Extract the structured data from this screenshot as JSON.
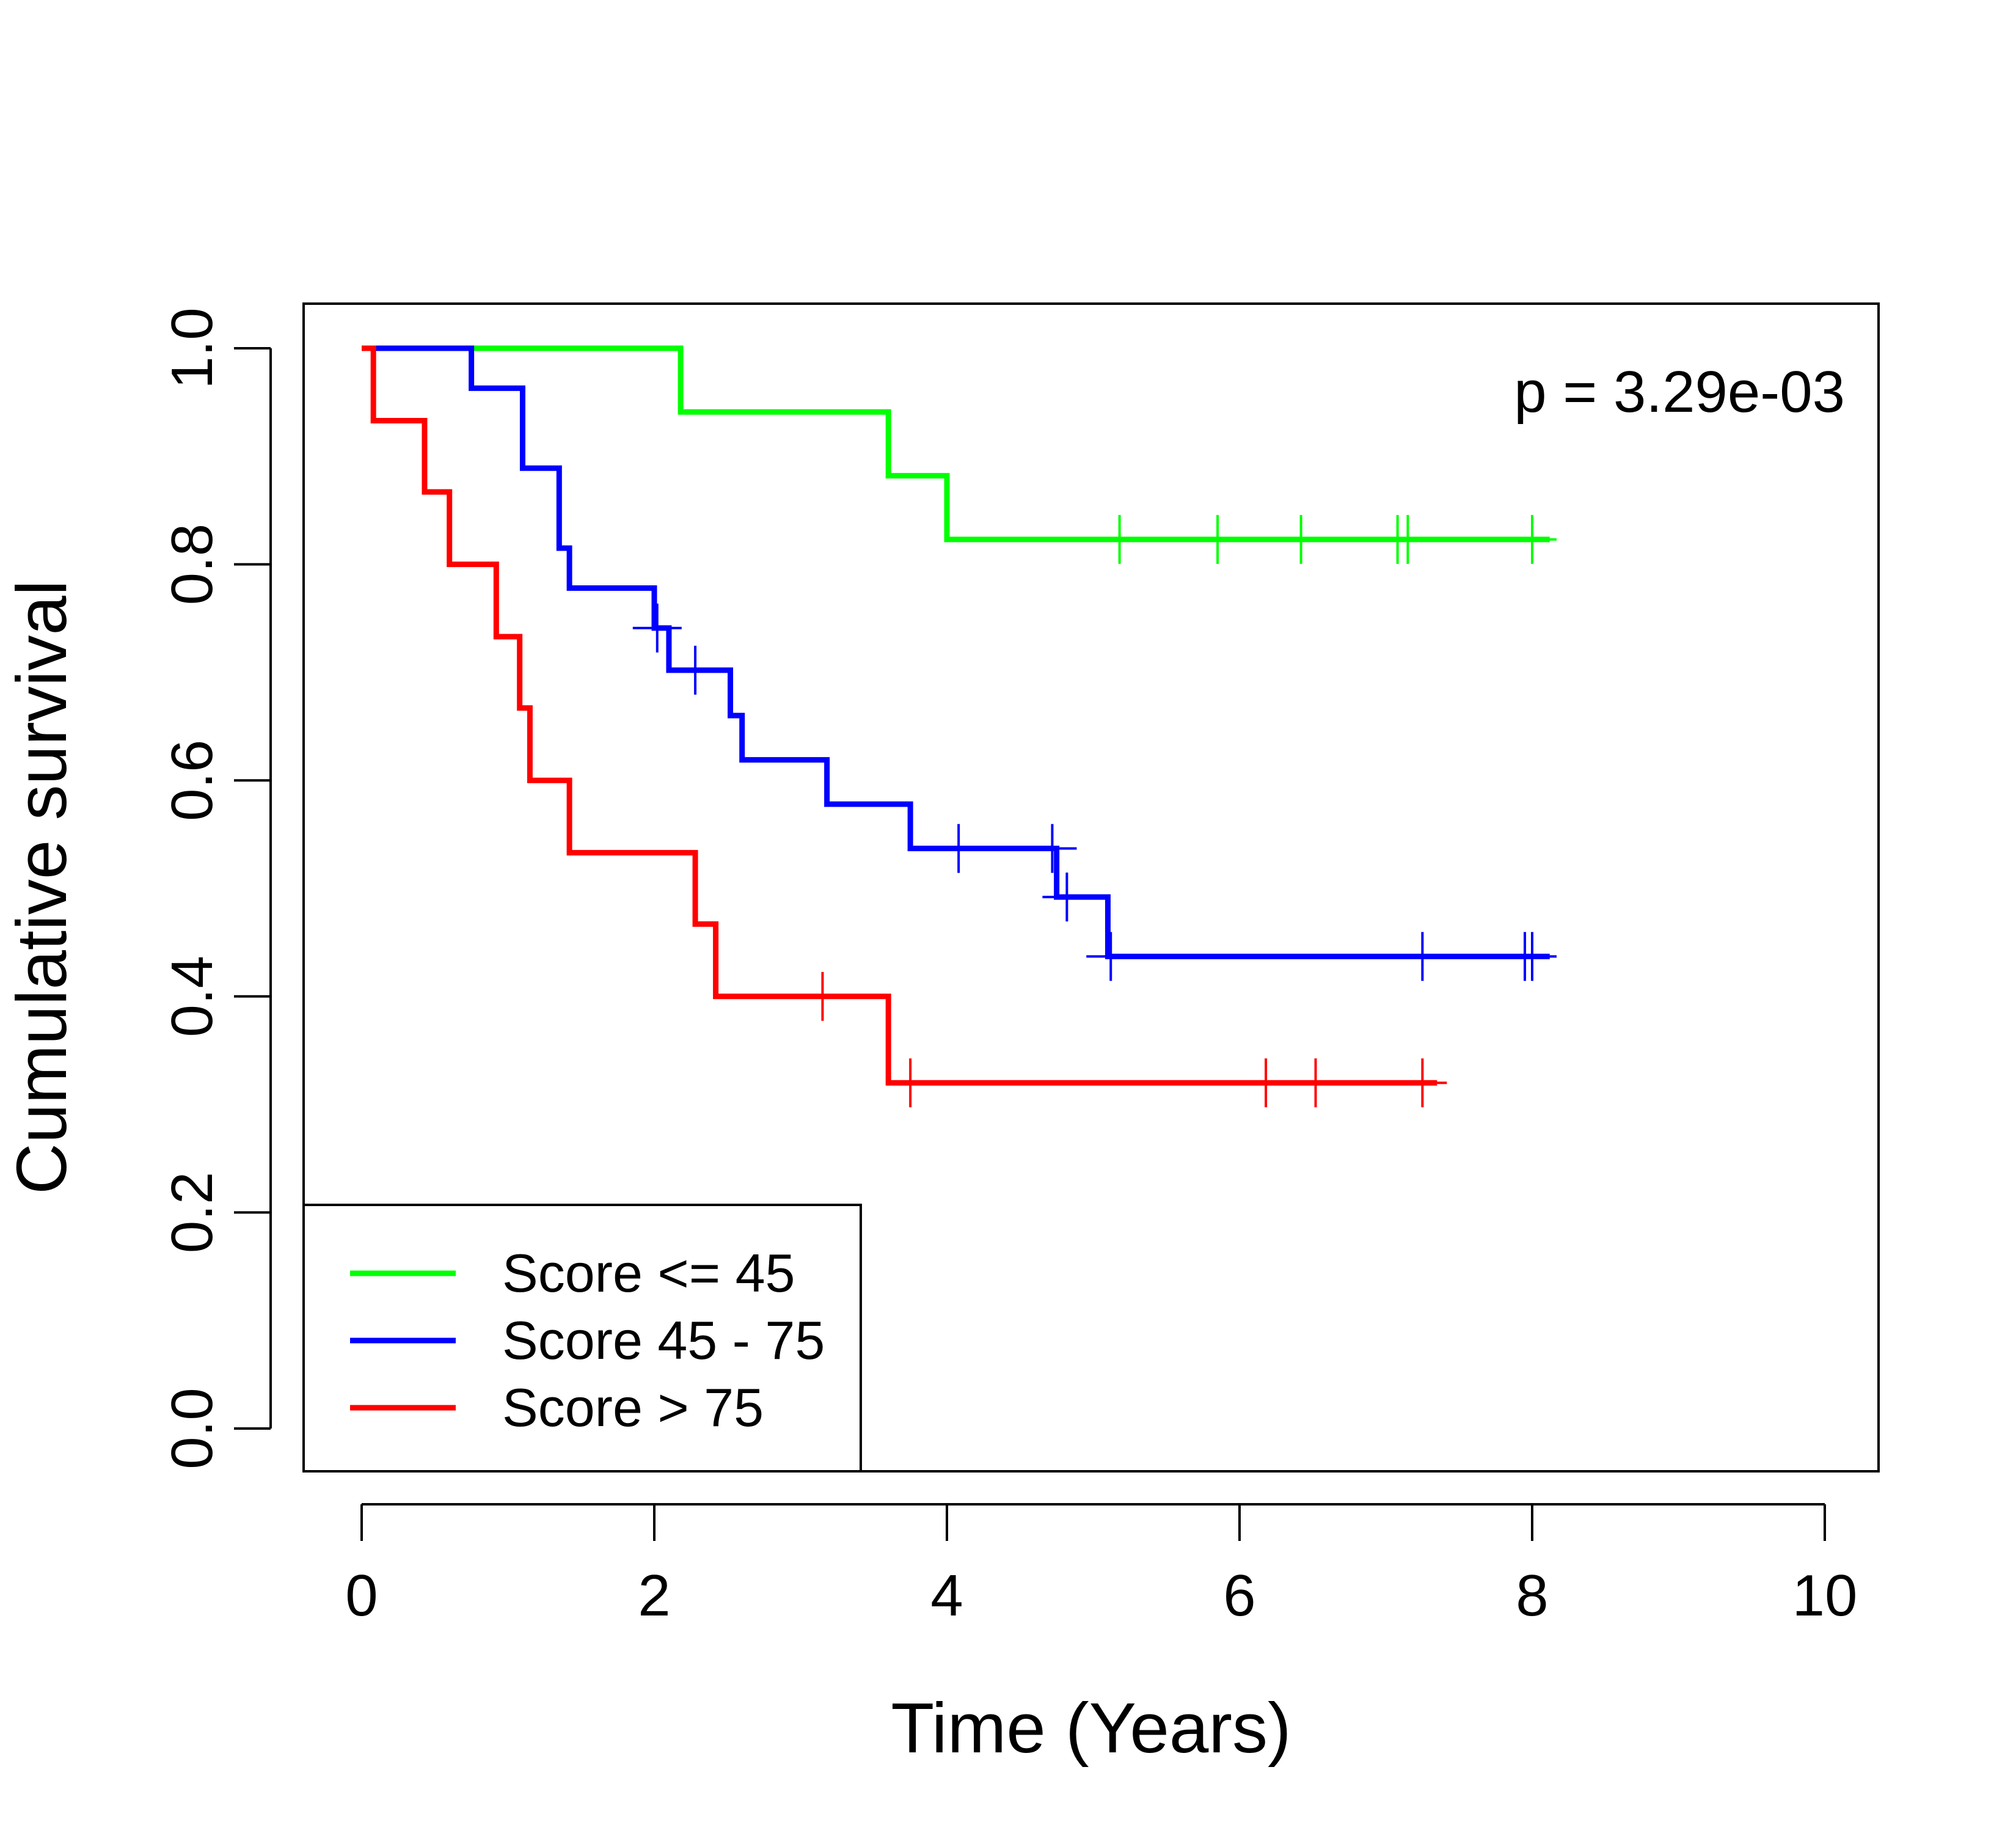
{
  "chart_data": {
    "type": "line",
    "subtype": "kaplan-meier",
    "title": "",
    "xlabel": "Time (Years)",
    "ylabel": "Cumulative survival",
    "xlim": [
      0,
      10
    ],
    "ylim": [
      0,
      1
    ],
    "xticks": [
      0,
      2,
      4,
      6,
      8,
      10
    ],
    "yticks": [
      0.0,
      0.2,
      0.4,
      0.6,
      0.8,
      1.0
    ],
    "xtick_labels": [
      "0",
      "2",
      "4",
      "6",
      "8",
      "10"
    ],
    "ytick_labels": [
      "0.0",
      "0.2",
      "0.4",
      "0.6",
      "0.8",
      "1.0"
    ],
    "grid": false,
    "legend_position": "bottom-left",
    "annotation": "p = 3.29e-03",
    "series": [
      {
        "name": "Score <= 45",
        "color": "#00ff00",
        "steps": [
          [
            0,
            1.0
          ],
          [
            2.18,
            0.941
          ],
          [
            3.6,
            0.882
          ],
          [
            4.0,
            0.823
          ]
        ],
        "end": 8.12,
        "censored": [
          5.18,
          5.85,
          6.42,
          7.08,
          7.15,
          8.0
        ]
      },
      {
        "name": "Score 45 - 75",
        "color": "#0000ff",
        "steps": [
          [
            0,
            1.0
          ],
          [
            0.75,
            0.963
          ],
          [
            1.1,
            0.889
          ],
          [
            1.35,
            0.815
          ],
          [
            1.42,
            0.778
          ],
          [
            2.0,
            0.741
          ],
          [
            2.1,
            0.702
          ],
          [
            2.52,
            0.66
          ],
          [
            2.6,
            0.619
          ],
          [
            3.18,
            0.578
          ],
          [
            3.75,
            0.537
          ],
          [
            4.75,
            0.492
          ],
          [
            5.1,
            0.437
          ]
        ],
        "end": 8.12,
        "censored": [
          2.02,
          2.28,
          4.08,
          4.72,
          4.82,
          5.12,
          7.25,
          7.95,
          8.0
        ]
      },
      {
        "name": "Score > 75",
        "color": "#ff0000",
        "steps": [
          [
            0,
            1.0
          ],
          [
            0.08,
            0.933
          ],
          [
            0.43,
            0.867
          ],
          [
            0.6,
            0.8
          ],
          [
            0.92,
            0.733
          ],
          [
            1.08,
            0.667
          ],
          [
            1.15,
            0.6
          ],
          [
            1.42,
            0.533
          ],
          [
            2.28,
            0.467
          ],
          [
            2.42,
            0.4
          ],
          [
            3.6,
            0.32
          ]
        ],
        "end": 7.35,
        "censored": [
          3.15,
          3.75,
          6.18,
          6.52,
          7.25
        ]
      }
    ]
  }
}
